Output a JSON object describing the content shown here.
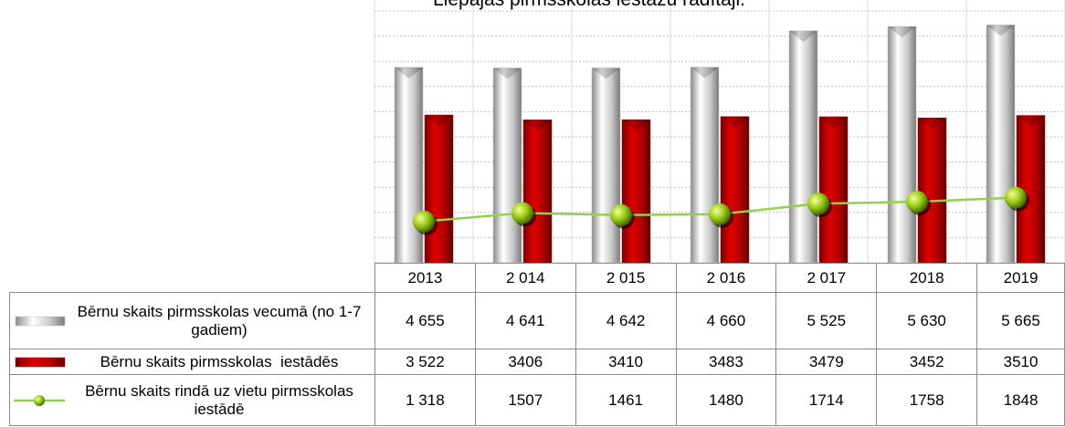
{
  "chart_data": {
    "type": "bar",
    "title": "Liepājas pirmsskolas iestāžu rādītāji.",
    "categories": [
      "2013",
      "2 014",
      "2 015",
      "2 016",
      "2 017",
      "2018",
      "2019"
    ],
    "ylim": [
      0,
      6000
    ],
    "yticks": [
      0,
      600,
      1200,
      1800,
      2400,
      3000,
      3600,
      4200,
      4800,
      5400,
      6000
    ],
    "y2lim": [
      400,
      6000
    ],
    "grid": true,
    "series": [
      {
        "name": "Bērnu skaits pirmsskolas vecumā (no 1-7 gadiem)",
        "type": "bar",
        "color": "#c0c0c0",
        "values": [
          4655,
          4641,
          4642,
          4660,
          5525,
          5630,
          5665
        ],
        "value_labels": [
          "4 655",
          "4 641",
          "4 642",
          "4 660",
          "5 525",
          "5 630",
          "5 665"
        ]
      },
      {
        "name": "Bērnu skaits pirmsskolas  iestādēs",
        "type": "bar",
        "color": "#c00000",
        "values": [
          3522,
          3406,
          3410,
          3483,
          3479,
          3452,
          3510
        ],
        "value_labels": [
          "3 522",
          "3406",
          "3410",
          "3483",
          "3479",
          "3452",
          "3510"
        ]
      },
      {
        "name": "Bērnu skaits rindā uz vietu pirmsskolas iestādē",
        "type": "line",
        "axis": "y2",
        "color": "#92d050",
        "values": [
          1318,
          1507,
          1461,
          1480,
          1714,
          1758,
          1848
        ],
        "value_labels": [
          "1 318",
          "1507",
          "1461",
          "1480",
          "1714",
          "1758",
          "1848"
        ]
      }
    ]
  }
}
